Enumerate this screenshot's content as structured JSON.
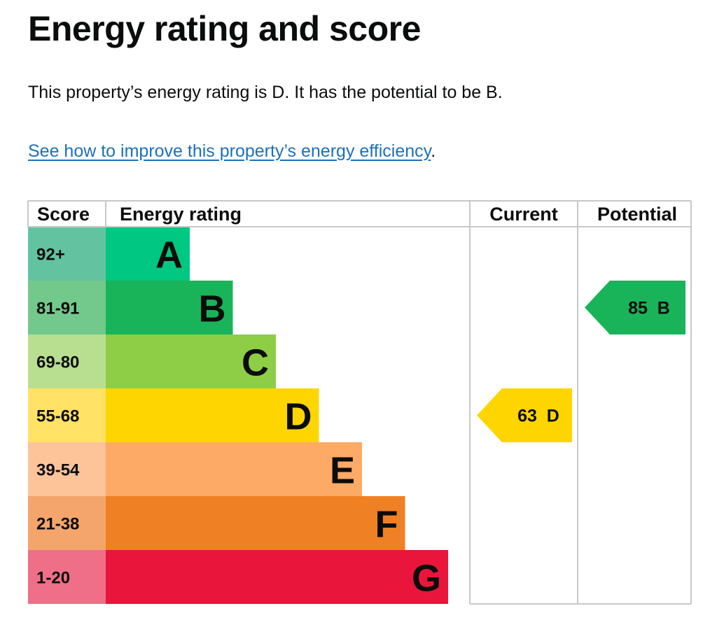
{
  "heading": "Energy rating and score",
  "summary": "This property’s energy rating is D. It has the potential to be B.",
  "link": {
    "text": "See how to improve this property’s energy efficiency",
    "after": "."
  },
  "table_headers": {
    "score": "Score",
    "rating": "Energy rating",
    "current": "Current",
    "potential": "Potential"
  },
  "bands": [
    {
      "score": "92+",
      "letter": "A",
      "color": "#00c781",
      "score_color": "#63c3a0"
    },
    {
      "score": "81-91",
      "letter": "B",
      "color": "#19b459",
      "score_color": "#73c98b"
    },
    {
      "score": "69-80",
      "letter": "C",
      "color": "#8dce46",
      "score_color": "#b7df8f"
    },
    {
      "score": "55-68",
      "letter": "D",
      "color": "#ffd500",
      "score_color": "#ffe266"
    },
    {
      "score": "39-54",
      "letter": "E",
      "color": "#fcaa65",
      "score_color": "#fdc399"
    },
    {
      "score": "21-38",
      "letter": "F",
      "color": "#ef8023",
      "score_color": "#f4a56c"
    },
    {
      "score": "1-20",
      "letter": "G",
      "color": "#e9153b",
      "score_color": "#f06f88"
    }
  ],
  "current": {
    "label": "63 D",
    "score": 63,
    "band": "D",
    "color": "#ffd500"
  },
  "potential": {
    "label": "85 B",
    "score": 85,
    "band": "B",
    "color": "#19b459"
  }
}
